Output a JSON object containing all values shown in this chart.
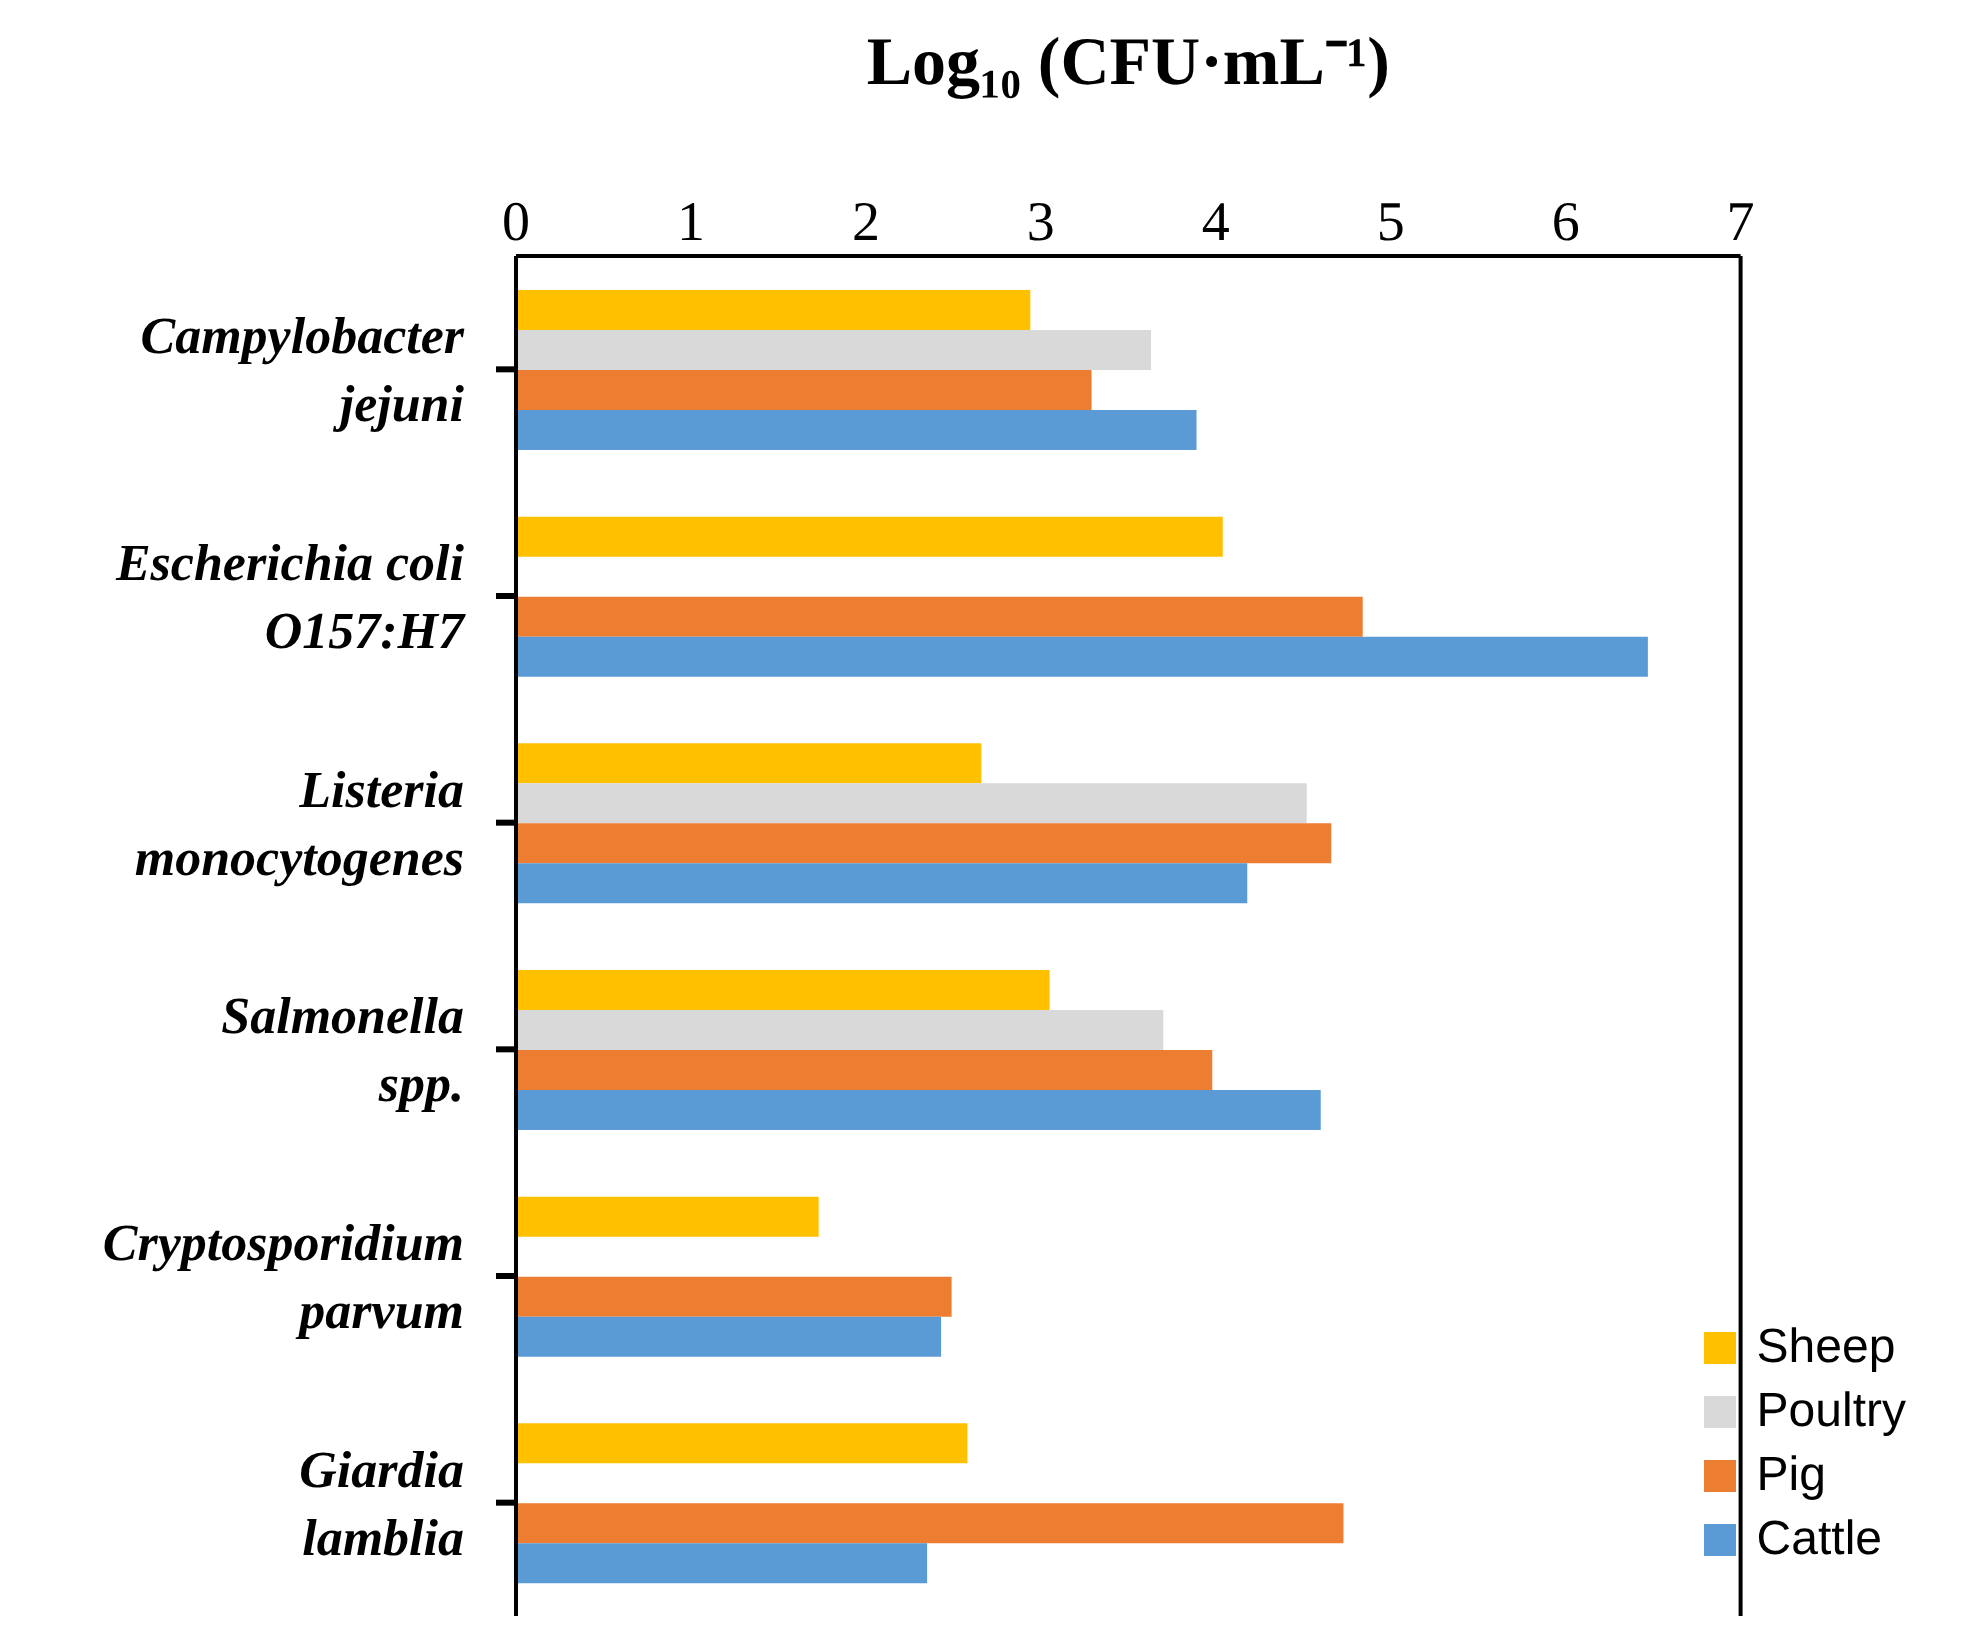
{
  "chart_data": {
    "type": "bar",
    "orientation": "horizontal",
    "xlabel": "Log₁₀ (CFU·mL⁻¹)",
    "categories": [
      "Campylobacter jejuni",
      "Escherichia coli O157:H7",
      "Listeria monocytogenes",
      "Salmonella spp.",
      "Cryptosporidium parvum",
      "Giardia lamblia"
    ],
    "series": [
      {
        "name": "Sheep",
        "color": "#ffc000",
        "values": [
          2.94,
          4.04,
          2.66,
          3.05,
          1.73,
          2.58
        ]
      },
      {
        "name": "Poultry",
        "color": "#d9d9d9",
        "values": [
          3.63,
          null,
          4.52,
          3.7,
          null,
          null
        ]
      },
      {
        "name": "Pig",
        "color": "#ed7d31",
        "values": [
          3.29,
          4.84,
          4.66,
          3.98,
          2.49,
          4.73
        ]
      },
      {
        "name": "Cattle",
        "color": "#5b9bd5",
        "values": [
          3.89,
          6.47,
          4.18,
          4.6,
          2.43,
          2.35
        ]
      }
    ],
    "xlim": [
      0,
      7
    ],
    "xticks": [
      0,
      1,
      2,
      3,
      4,
      5,
      6,
      7
    ],
    "legend": "bottom right",
    "grid": false
  }
}
